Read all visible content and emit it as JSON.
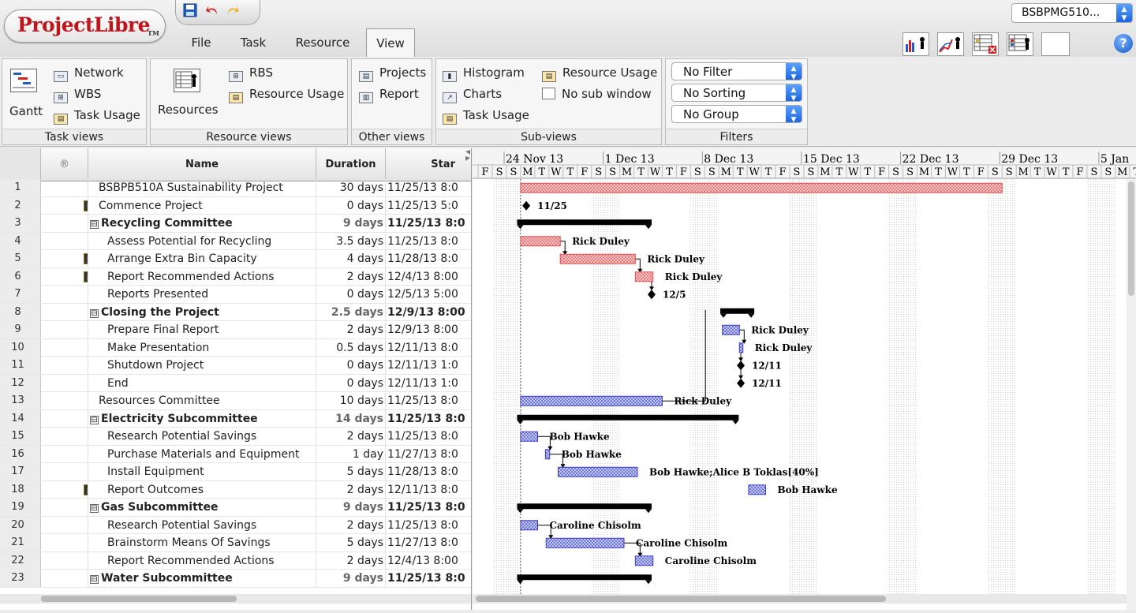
{
  "app": {
    "logo_text": "ProjectLibre",
    "logo_tm": "TM",
    "project_selector": "BSBPMG510..."
  },
  "menu_tabs": [
    "File",
    "Task",
    "Resource",
    "View"
  ],
  "active_tab": "View",
  "ribbon": {
    "task_views": {
      "title": "Task views",
      "gantt": "Gantt",
      "network": "Network",
      "wbs": "WBS",
      "task_usage": "Task Usage"
    },
    "resource_views": {
      "title": "Resource views",
      "resources": "Resources",
      "rbs": "RBS",
      "resource_usage": "Resource Usage"
    },
    "other_views": {
      "title": "Other views",
      "projects": "Projects",
      "report": "Report"
    },
    "sub_views": {
      "title": "Sub-views",
      "histogram": "Histogram",
      "charts": "Charts",
      "task_usage": "Task Usage",
      "resource_usage": "Resource Usage",
      "no_sub_window": "No sub window"
    },
    "filters": {
      "title": "Filters",
      "filter": "No Filter",
      "sorting": "No Sorting",
      "group": "No Group"
    }
  },
  "table": {
    "columns": {
      "indicators": "®",
      "name": "Name",
      "duration": "Duration",
      "start": "Star"
    },
    "rows": [
      {
        "id": "1",
        "name": "BSBPB510A Sustainability Project",
        "duration": "30 days",
        "start": "11/25/13 8:0",
        "level": 0,
        "summary": false,
        "note": false,
        "toggle": ""
      },
      {
        "id": "2",
        "name": "Commence Project",
        "duration": "0 days",
        "start": "11/25/13 5:0",
        "level": 0,
        "summary": false,
        "note": true,
        "toggle": ""
      },
      {
        "id": "3",
        "name": "Recycling Committee",
        "duration": "9 days",
        "start": "11/25/13 8:0",
        "level": 0,
        "summary": true,
        "note": false,
        "toggle": "⊟"
      },
      {
        "id": "4",
        "name": "Assess Potential for Recycling",
        "duration": "3.5 days",
        "start": "11/25/13 8:0",
        "level": 1,
        "summary": false,
        "note": false,
        "toggle": ""
      },
      {
        "id": "5",
        "name": "Arrange Extra Bin Capacity",
        "duration": "4 days",
        "start": "11/28/13 8:0",
        "level": 1,
        "summary": false,
        "note": true,
        "toggle": ""
      },
      {
        "id": "6",
        "name": "Report Recommended Actions",
        "duration": "2 days",
        "start": "12/4/13 8:00",
        "level": 1,
        "summary": false,
        "note": true,
        "toggle": ""
      },
      {
        "id": "7",
        "name": "Reports Presented",
        "duration": "0 days",
        "start": "12/5/13 5:00",
        "level": 1,
        "summary": false,
        "note": false,
        "toggle": ""
      },
      {
        "id": "8",
        "name": "Closing the Project",
        "duration": "2.5 days",
        "start": "12/9/13 8:00",
        "level": 0,
        "summary": true,
        "note": false,
        "toggle": "⊟"
      },
      {
        "id": "9",
        "name": "Prepare Final Report",
        "duration": "2 days",
        "start": "12/9/13 8:00",
        "level": 1,
        "summary": false,
        "note": false,
        "toggle": ""
      },
      {
        "id": "10",
        "name": "Make Presentation",
        "duration": "0.5 days",
        "start": "12/11/13 8:0",
        "level": 1,
        "summary": false,
        "note": false,
        "toggle": ""
      },
      {
        "id": "11",
        "name": "Shutdown Project",
        "duration": "0 days",
        "start": "12/11/13 1:0",
        "level": 1,
        "summary": false,
        "note": false,
        "toggle": ""
      },
      {
        "id": "12",
        "name": "End",
        "duration": "0 days",
        "start": "12/11/13 1:0",
        "level": 1,
        "summary": false,
        "note": false,
        "toggle": ""
      },
      {
        "id": "13",
        "name": "Resources Committee",
        "duration": "10 days",
        "start": "11/25/13 8:0",
        "level": 0,
        "summary": false,
        "note": false,
        "toggle": ""
      },
      {
        "id": "14",
        "name": "Electricity Subcommittee",
        "duration": "14 days",
        "start": "11/25/13 8:0",
        "level": 0,
        "summary": true,
        "note": false,
        "toggle": "⊟"
      },
      {
        "id": "15",
        "name": "Research Potential Savings",
        "duration": "2 days",
        "start": "11/25/13 8:0",
        "level": 1,
        "summary": false,
        "note": false,
        "toggle": ""
      },
      {
        "id": "16",
        "name": "Purchase Materials and Equipment",
        "duration": "1 day",
        "start": "11/27/13 8:0",
        "level": 1,
        "summary": false,
        "note": false,
        "toggle": ""
      },
      {
        "id": "17",
        "name": "Install Equipment",
        "duration": "5 days",
        "start": "11/28/13 8:0",
        "level": 1,
        "summary": false,
        "note": false,
        "toggle": ""
      },
      {
        "id": "18",
        "name": "Report Outcomes",
        "duration": "2 days",
        "start": "12/11/13 8:0",
        "level": 1,
        "summary": false,
        "note": true,
        "toggle": ""
      },
      {
        "id": "19",
        "name": "Gas Subcommittee",
        "duration": "9 days",
        "start": "11/25/13 8:0",
        "level": 0,
        "summary": true,
        "note": false,
        "toggle": "⊟"
      },
      {
        "id": "20",
        "name": "Research Potential Savings",
        "duration": "2 days",
        "start": "11/25/13 8:0",
        "level": 1,
        "summary": false,
        "note": false,
        "toggle": ""
      },
      {
        "id": "21",
        "name": "Brainstorm Means Of Savings",
        "duration": "5 days",
        "start": "11/27/13 8:0",
        "level": 1,
        "summary": false,
        "note": false,
        "toggle": ""
      },
      {
        "id": "22",
        "name": "Report Recommended Actions",
        "duration": "2 days",
        "start": "12/4/13 8:00",
        "level": 1,
        "summary": false,
        "note": false,
        "toggle": ""
      },
      {
        "id": "23",
        "name": "Water Subcommittee",
        "duration": "9 days",
        "start": "11/25/13 8:0",
        "level": 0,
        "summary": true,
        "note": false,
        "toggle": "⊟"
      }
    ]
  },
  "gantt": {
    "weeks": [
      "24 Nov 13",
      "1 Dec 13",
      "8 Dec 13",
      "15 Dec 13",
      "22 Dec 13",
      "29 Dec 13",
      "5 Jan"
    ],
    "day_letters_lead": [
      "F",
      "S"
    ],
    "day_letters_week": [
      "S",
      "M",
      "T",
      "W",
      "T",
      "F",
      "S"
    ],
    "colors": {
      "critical": "#e84a4a",
      "normal": "#3a3ad0",
      "summary": "#000000"
    },
    "bars": [
      {
        "row": 1,
        "kind": "critical",
        "start": 1,
        "end": 35,
        "label": ""
      },
      {
        "row": 2,
        "kind": "milestone",
        "start": 1.4,
        "label": "11/25"
      },
      {
        "row": 3,
        "kind": "summary",
        "start": 0.75,
        "end": 10.25,
        "label": ""
      },
      {
        "row": 4,
        "kind": "critical",
        "start": 1,
        "end": 3.8,
        "label": "Rick Duley"
      },
      {
        "row": 5,
        "kind": "critical",
        "start": 3.8,
        "end": 9.1,
        "label": "Rick Duley"
      },
      {
        "row": 6,
        "kind": "critical",
        "start": 9.1,
        "end": 10.35,
        "label": "Rick Duley"
      },
      {
        "row": 7,
        "kind": "milestone",
        "start": 10.25,
        "label": "12/5"
      },
      {
        "row": 8,
        "kind": "summary",
        "start": 15.1,
        "end": 17.5,
        "label": ""
      },
      {
        "row": 9,
        "kind": "normal",
        "start": 15.25,
        "end": 16.45,
        "label": "Rick Duley"
      },
      {
        "row": 10,
        "kind": "normal",
        "start": 16.45,
        "end": 16.7,
        "label": "Rick Duley"
      },
      {
        "row": 11,
        "kind": "milestone",
        "start": 16.55,
        "label": "12/11"
      },
      {
        "row": 12,
        "kind": "milestone",
        "start": 16.55,
        "label": "12/11"
      },
      {
        "row": 13,
        "kind": "normal",
        "start": 1,
        "end": 11,
        "label": "Rick Duley"
      },
      {
        "row": 14,
        "kind": "summary",
        "start": 0.75,
        "end": 16.4,
        "label": ""
      },
      {
        "row": 15,
        "kind": "normal",
        "start": 1,
        "end": 2.2,
        "label": "Bob Hawke"
      },
      {
        "row": 16,
        "kind": "normal",
        "start": 2.75,
        "end": 3.05,
        "label": "Bob Hawke"
      },
      {
        "row": 17,
        "kind": "normal",
        "start": 3.65,
        "end": 9.25,
        "label": "Bob Hawke;Alice B Toklas[40%]"
      },
      {
        "row": 18,
        "kind": "normal",
        "start": 17.1,
        "end": 18.3,
        "label": "Bob Hawke"
      },
      {
        "row": 19,
        "kind": "summary",
        "start": 0.75,
        "end": 10.25,
        "label": ""
      },
      {
        "row": 20,
        "kind": "normal",
        "start": 1,
        "end": 2.2,
        "label": "Caroline Chisolm"
      },
      {
        "row": 21,
        "kind": "normal",
        "start": 2.8,
        "end": 8.3,
        "label": "Caroline Chisolm"
      },
      {
        "row": 22,
        "kind": "normal",
        "start": 9.1,
        "end": 10.35,
        "label": "Caroline Chisolm"
      },
      {
        "row": 23,
        "kind": "summary",
        "start": 0.75,
        "end": 10.25,
        "label": ""
      }
    ]
  }
}
